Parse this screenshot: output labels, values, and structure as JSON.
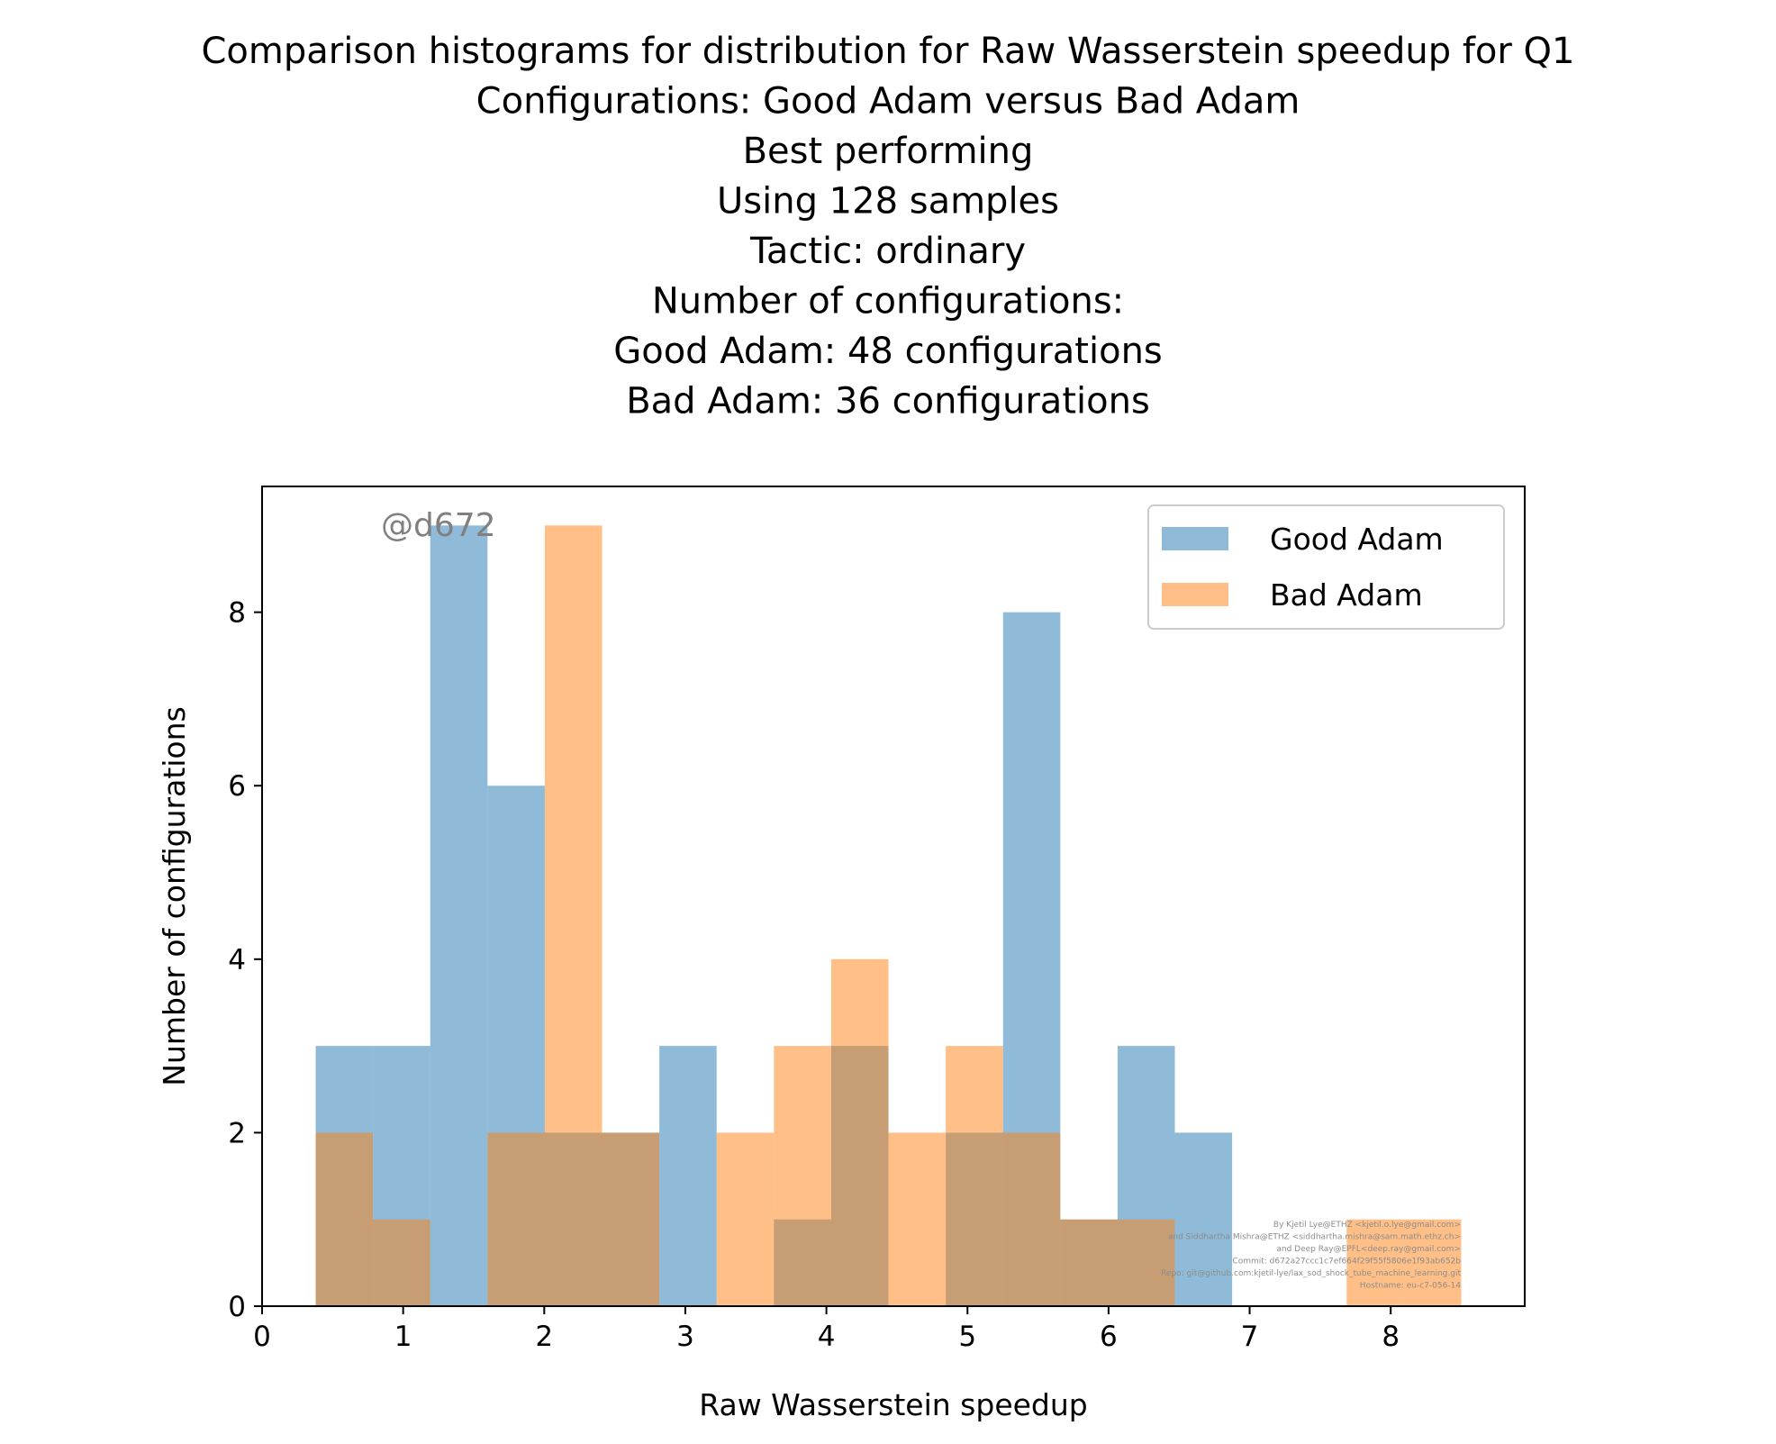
{
  "chart_data": {
    "type": "bar",
    "subtype": "histogram-overlay",
    "title_lines": [
      "Comparison histograms for distribution for Raw Wasserstein speedup for Q1",
      "Configurations: Good Adam versus Bad Adam",
      "Best performing",
      "Using 128 samples",
      "Tactic: ordinary",
      "Number of configurations:",
      "Good Adam: 48 configurations",
      "Bad Adam: 36 configurations"
    ],
    "xlabel": "Raw Wasserstein speedup",
    "ylabel": "Number of configurations",
    "xlim": [
      0,
      8.95
    ],
    "ylim": [
      0,
      9.45
    ],
    "xticks": [
      0,
      1,
      2,
      3,
      4,
      5,
      6,
      7,
      8
    ],
    "yticks": [
      0,
      2,
      4,
      6,
      8
    ],
    "grid": false,
    "legend_position": "top-right",
    "series": [
      {
        "name": "Good Adam",
        "color": "#1f77b4",
        "alpha": 0.5,
        "bin_edges": [
          0.38,
          0.786,
          1.192,
          1.598,
          2.004,
          2.41,
          2.816,
          3.222,
          3.628,
          4.034,
          4.44,
          4.846,
          5.252,
          5.658,
          6.064,
          6.47,
          6.876
        ],
        "counts": [
          3,
          3,
          9,
          6,
          2,
          2,
          3,
          0,
          1,
          3,
          0,
          2,
          8,
          1,
          3,
          2
        ]
      },
      {
        "name": "Bad Adam",
        "color": "#ff7f0e",
        "alpha": 0.5,
        "bin_edges": [
          0.38,
          0.786,
          1.192,
          1.598,
          2.004,
          2.41,
          2.816,
          3.222,
          3.628,
          4.034,
          4.44,
          4.846,
          5.252,
          5.658,
          6.064,
          6.47,
          6.876,
          7.282,
          7.688,
          8.094,
          8.5
        ],
        "counts": [
          2,
          1,
          0,
          2,
          9,
          2,
          0,
          2,
          3,
          4,
          2,
          3,
          2,
          1,
          1,
          0,
          0,
          0,
          1,
          1
        ]
      }
    ],
    "annotations": {
      "watermark": "@d672",
      "credits": [
        "By Kjetil Lye@ETHZ <kjetil.o.lye@gmail.com>",
        "and Siddhartha Mishra@ETHZ <siddhartha.mishra@sam.math.ethz.ch>",
        "and Deep Ray@EPFL<deep.ray@gmail.com>",
        "Commit: d672a27ccc1c7ef664f29f55f5806e1f93ab652b",
        "Repo: git@github.com:kjetil-lye/lax_sod_shock_tube_machine_learning.git",
        "Hostname: eu-c7-056-14"
      ]
    }
  }
}
